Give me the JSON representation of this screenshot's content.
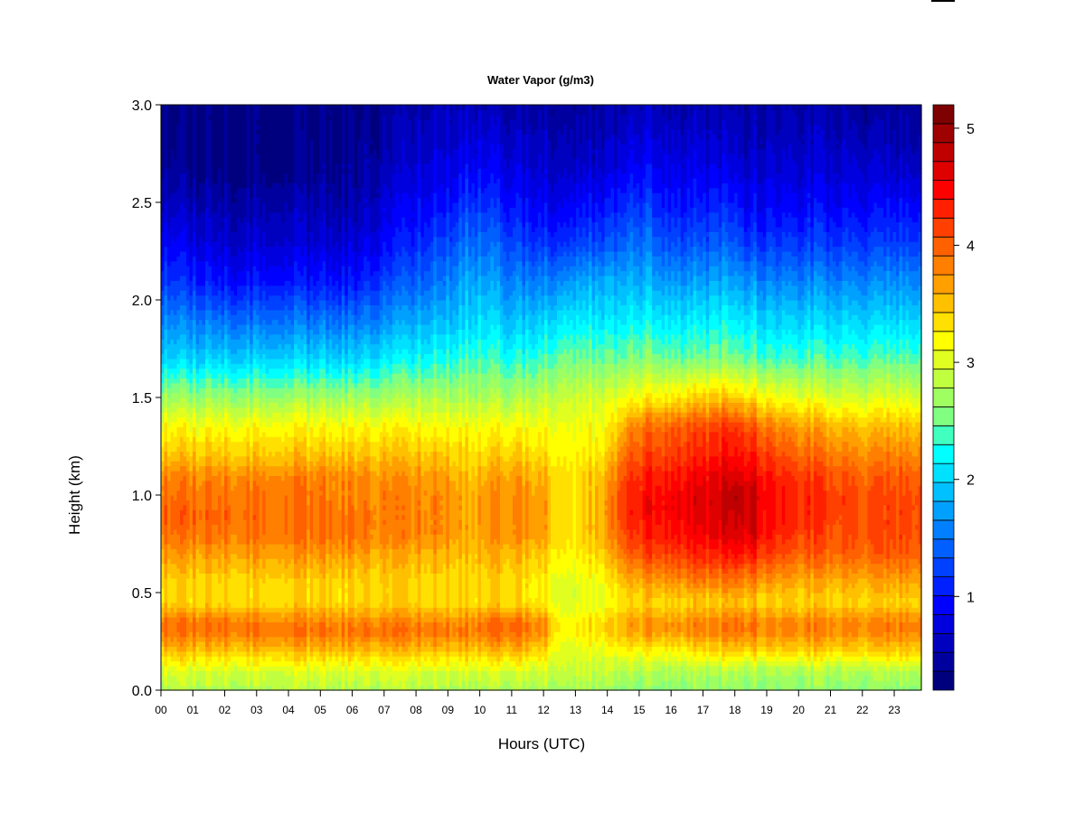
{
  "chart_data": {
    "type": "heatmap",
    "title": "Water Vapor (g/m3)",
    "xlabel": "Hours (UTC)",
    "ylabel": "Height (km)",
    "xlim": [
      0,
      23.85
    ],
    "ylim": [
      0,
      3.0
    ],
    "x_ticks": [
      0,
      1,
      2,
      3,
      4,
      5,
      6,
      7,
      8,
      9,
      10,
      11,
      12,
      13,
      14,
      15,
      16,
      17,
      18,
      19,
      20,
      21,
      22,
      23
    ],
    "x_tick_labels": [
      "00",
      "01",
      "02",
      "03",
      "04",
      "05",
      "06",
      "07",
      "08",
      "09",
      "10",
      "11",
      "12",
      "13",
      "14",
      "15",
      "16",
      "17",
      "18",
      "19",
      "20",
      "21",
      "22",
      "23"
    ],
    "y_ticks": [
      0.0,
      0.5,
      1.0,
      1.5,
      2.0,
      2.5,
      3.0
    ],
    "y_tick_labels": [
      "0.0",
      "0.5",
      "1.0",
      "1.5",
      "2.0",
      "2.5",
      "3.0"
    ],
    "colorbar": {
      "min": 0.2,
      "max": 5.2,
      "levels": 25,
      "ticks": [
        1,
        2,
        3,
        4,
        5
      ],
      "tick_labels": [
        "1",
        "2",
        "3",
        "4",
        "5"
      ],
      "colors": [
        "#00007f",
        "#00009f",
        "#0000bf",
        "#0000df",
        "#0000ff",
        "#0020ff",
        "#0040ff",
        "#0060ff",
        "#0080ff",
        "#00a0ff",
        "#00c0ff",
        "#00e0ff",
        "#00ffff",
        "#40ffbf",
        "#80ff80",
        "#a0ff60",
        "#c0ff40",
        "#e0ff20",
        "#ffff00",
        "#ffe000",
        "#ffc000",
        "#ff9f00",
        "#ff7f00",
        "#ff6000",
        "#ff4000",
        "#ff2000",
        "#ff0000",
        "#df0000",
        "#bf0000",
        "#9f0000",
        "#7f0000"
      ]
    },
    "hour_samples": [
      0,
      2,
      4,
      6,
      7,
      8,
      9,
      9.6,
      10,
      11,
      12,
      12.6,
      13,
      14,
      14.5,
      15,
      16,
      17,
      17.5,
      18,
      18.5,
      19,
      20,
      21,
      22,
      23,
      23.85
    ],
    "height_samples": [
      0.0,
      0.1,
      0.2,
      0.3,
      0.35,
      0.45,
      0.55,
      0.7,
      0.8,
      0.9,
      1.0,
      1.1,
      1.2,
      1.35,
      1.5,
      1.7,
      1.9,
      2.1,
      2.3,
      2.5,
      2.7,
      3.0
    ],
    "values": [
      [
        2.8,
        2.8,
        2.8,
        2.8,
        2.8,
        2.8,
        2.8,
        2.8,
        2.8,
        2.8,
        2.8,
        2.7,
        2.7,
        2.7,
        2.6,
        2.6,
        2.6,
        2.6,
        2.6,
        2.6,
        2.6,
        2.6,
        2.6,
        2.6,
        2.6,
        2.6,
        2.6
      ],
      [
        3.0,
        3.0,
        3.0,
        3.0,
        3.0,
        3.0,
        3.0,
        3.0,
        3.0,
        3.0,
        3.0,
        2.9,
        2.9,
        2.9,
        2.8,
        2.8,
        2.8,
        2.8,
        2.8,
        2.8,
        2.8,
        2.8,
        2.8,
        2.8,
        2.8,
        2.8,
        2.8
      ],
      [
        3.5,
        3.5,
        3.5,
        3.5,
        3.5,
        3.5,
        3.5,
        3.5,
        3.5,
        3.6,
        3.4,
        3.0,
        3.0,
        3.1,
        3.2,
        3.2,
        3.2,
        3.3,
        3.4,
        3.4,
        3.4,
        3.4,
        3.4,
        3.4,
        3.4,
        3.4,
        3.4
      ],
      [
        3.9,
        3.9,
        3.9,
        3.9,
        3.9,
        3.9,
        3.9,
        3.9,
        3.9,
        4.0,
        3.8,
        3.1,
        3.2,
        3.4,
        3.6,
        3.7,
        3.7,
        3.8,
        3.8,
        3.9,
        3.9,
        3.8,
        3.8,
        3.8,
        3.8,
        3.8,
        3.8
      ],
      [
        3.9,
        3.9,
        3.8,
        3.8,
        3.8,
        3.8,
        3.8,
        3.8,
        3.9,
        4.0,
        3.8,
        3.1,
        3.2,
        3.4,
        3.6,
        3.7,
        3.7,
        3.8,
        3.8,
        3.9,
        3.9,
        3.8,
        3.8,
        3.8,
        3.8,
        3.8,
        3.8
      ],
      [
        3.4,
        3.4,
        3.4,
        3.4,
        3.4,
        3.4,
        3.4,
        3.4,
        3.4,
        3.4,
        3.3,
        3.0,
        3.0,
        3.1,
        3.3,
        3.4,
        3.4,
        3.4,
        3.4,
        3.5,
        3.5,
        3.4,
        3.4,
        3.4,
        3.4,
        3.4,
        3.4
      ],
      [
        3.4,
        3.4,
        3.4,
        3.4,
        3.4,
        3.4,
        3.4,
        3.4,
        3.4,
        3.4,
        3.3,
        3.0,
        3.0,
        3.2,
        3.5,
        3.6,
        3.7,
        3.8,
        3.8,
        3.8,
        3.8,
        3.7,
        3.6,
        3.6,
        3.6,
        3.6,
        3.6
      ],
      [
        3.7,
        3.7,
        3.7,
        3.7,
        3.6,
        3.6,
        3.6,
        3.5,
        3.6,
        3.6,
        3.5,
        3.2,
        3.2,
        3.5,
        3.9,
        4.1,
        4.2,
        4.3,
        4.3,
        4.4,
        4.4,
        4.2,
        4.0,
        4.0,
        4.0,
        4.0,
        4.0
      ],
      [
        3.9,
        3.9,
        3.9,
        3.9,
        3.8,
        3.8,
        3.8,
        3.6,
        3.7,
        3.8,
        3.7,
        3.3,
        3.3,
        3.7,
        4.1,
        4.3,
        4.4,
        4.5,
        4.6,
        4.6,
        4.7,
        4.4,
        4.2,
        4.1,
        4.1,
        4.1,
        4.1
      ],
      [
        4.0,
        4.0,
        3.9,
        3.9,
        3.8,
        3.8,
        3.8,
        3.6,
        3.7,
        3.8,
        3.7,
        3.3,
        3.3,
        3.7,
        4.2,
        4.4,
        4.5,
        4.6,
        4.7,
        4.7,
        4.8,
        4.5,
        4.3,
        4.2,
        4.1,
        4.1,
        4.1
      ],
      [
        3.9,
        3.9,
        3.9,
        3.8,
        3.8,
        3.8,
        3.8,
        3.6,
        3.7,
        3.8,
        3.7,
        3.3,
        3.3,
        3.7,
        4.2,
        4.4,
        4.5,
        4.6,
        4.7,
        4.8,
        4.8,
        4.5,
        4.3,
        4.2,
        4.1,
        4.1,
        4.1
      ],
      [
        3.8,
        3.8,
        3.8,
        3.8,
        3.7,
        3.7,
        3.7,
        3.5,
        3.6,
        3.7,
        3.6,
        3.3,
        3.3,
        3.6,
        4.1,
        4.3,
        4.4,
        4.5,
        4.6,
        4.6,
        4.6,
        4.4,
        4.2,
        4.1,
        4.0,
        4.0,
        4.0
      ],
      [
        3.5,
        3.5,
        3.5,
        3.5,
        3.5,
        3.5,
        3.5,
        3.4,
        3.4,
        3.5,
        3.4,
        3.2,
        3.2,
        3.4,
        3.9,
        4.1,
        4.2,
        4.3,
        4.4,
        4.4,
        4.4,
        4.2,
        4.0,
        3.9,
        3.8,
        3.8,
        3.8
      ],
      [
        3.2,
        3.2,
        3.2,
        3.2,
        3.2,
        3.2,
        3.2,
        3.2,
        3.2,
        3.2,
        3.2,
        3.1,
        3.1,
        3.2,
        3.6,
        3.9,
        4.0,
        4.1,
        4.2,
        4.2,
        4.1,
        3.9,
        3.7,
        3.6,
        3.5,
        3.5,
        3.5
      ],
      [
        2.7,
        2.7,
        2.7,
        2.7,
        2.7,
        2.8,
        2.8,
        2.8,
        2.8,
        2.8,
        2.9,
        2.9,
        2.9,
        3.0,
        3.1,
        3.2,
        3.3,
        3.4,
        3.5,
        3.4,
        3.4,
        3.2,
        3.1,
        3.0,
        3.0,
        3.0,
        3.0
      ],
      [
        2.0,
        2.0,
        2.0,
        2.0,
        2.1,
        2.2,
        2.3,
        2.4,
        2.4,
        2.3,
        2.4,
        2.5,
        2.5,
        2.5,
        2.5,
        2.6,
        2.5,
        2.5,
        2.6,
        2.5,
        2.5,
        2.4,
        2.4,
        2.4,
        2.4,
        2.4,
        2.4
      ],
      [
        1.6,
        1.5,
        1.5,
        1.5,
        1.6,
        1.8,
        1.9,
        2.0,
        2.1,
        1.9,
        2.0,
        2.1,
        2.1,
        2.1,
        2.1,
        2.2,
        2.1,
        2.1,
        2.2,
        2.1,
        2.1,
        2.0,
        2.0,
        2.0,
        2.0,
        2.0,
        2.0
      ],
      [
        1.2,
        1.0,
        1.0,
        1.0,
        1.2,
        1.4,
        1.6,
        1.8,
        1.8,
        1.6,
        1.6,
        1.6,
        1.7,
        1.8,
        1.8,
        1.8,
        1.7,
        1.7,
        1.8,
        1.7,
        1.7,
        1.6,
        1.6,
        1.6,
        1.6,
        1.6,
        1.6
      ],
      [
        0.9,
        0.7,
        0.7,
        0.7,
        0.9,
        1.1,
        1.3,
        1.5,
        1.5,
        1.3,
        1.2,
        1.1,
        1.2,
        1.3,
        1.4,
        1.5,
        1.3,
        1.3,
        1.4,
        1.3,
        1.2,
        1.2,
        1.2,
        1.2,
        1.2,
        1.2,
        1.2
      ],
      [
        0.6,
        0.5,
        0.5,
        0.5,
        0.7,
        0.9,
        1.0,
        1.2,
        1.2,
        1.0,
        0.9,
        0.8,
        0.9,
        1.0,
        1.1,
        1.2,
        1.0,
        1.0,
        1.1,
        1.0,
        0.9,
        0.9,
        0.9,
        0.9,
        0.9,
        0.9,
        0.9
      ],
      [
        0.4,
        0.3,
        0.3,
        0.4,
        0.5,
        0.7,
        0.8,
        0.9,
        0.9,
        0.8,
        0.7,
        0.6,
        0.6,
        0.7,
        0.8,
        0.9,
        0.8,
        0.8,
        0.8,
        0.7,
        0.7,
        0.7,
        0.7,
        0.7,
        0.7,
        0.6,
        0.6
      ],
      [
        0.3,
        0.3,
        0.3,
        0.3,
        0.4,
        0.5,
        0.6,
        0.6,
        0.6,
        0.5,
        0.5,
        0.4,
        0.4,
        0.5,
        0.5,
        0.6,
        0.5,
        0.5,
        0.5,
        0.5,
        0.5,
        0.5,
        0.5,
        0.5,
        0.4,
        0.4,
        0.4
      ]
    ]
  }
}
